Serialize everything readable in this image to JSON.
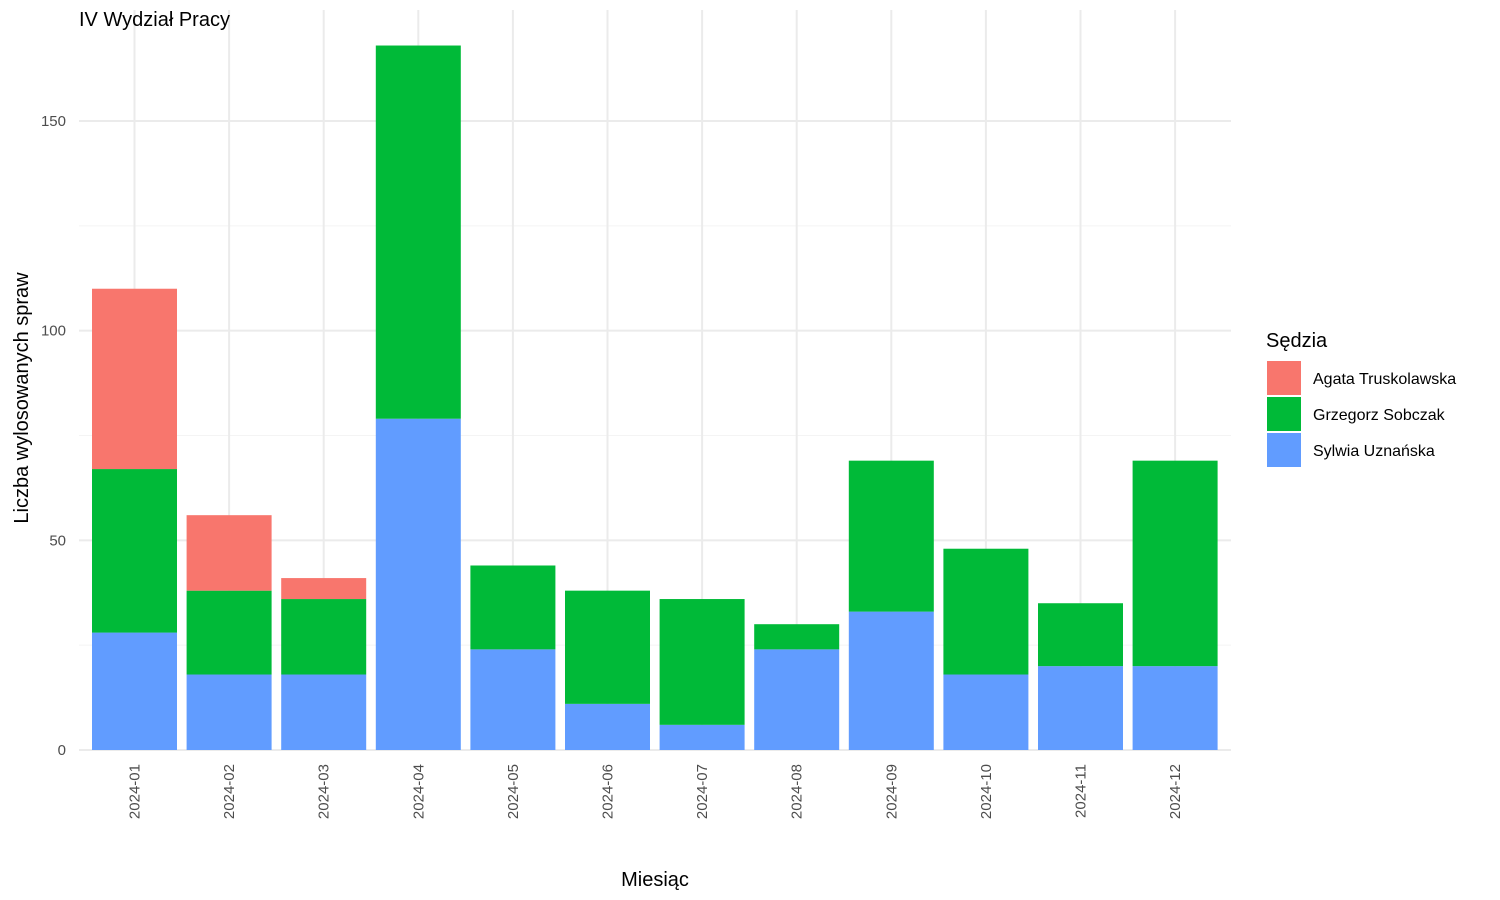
{
  "chart_data": {
    "type": "bar",
    "stacked": true,
    "title": "IV Wydział Pracy",
    "xlabel": "Miesiąc",
    "ylabel": "Liczba wylosowanych spraw",
    "ylim": [
      0,
      175
    ],
    "yticks": [
      0,
      50,
      100,
      150
    ],
    "grid": true,
    "legend_position": "right",
    "categories": [
      "2024-01",
      "2024-02",
      "2024-03",
      "2024-04",
      "2024-05",
      "2024-06",
      "2024-07",
      "2024-08",
      "2024-09",
      "2024-10",
      "2024-11",
      "2024-12"
    ],
    "legend": {
      "title": "Sędzia"
    },
    "series": [
      {
        "name": "Agata Truskolawska",
        "color": "#F8766D",
        "values": [
          43,
          18,
          5,
          0,
          0,
          0,
          0,
          0,
          0,
          0,
          0,
          0
        ]
      },
      {
        "name": "Grzegorz Sobczak",
        "color": "#00BA38",
        "values": [
          39,
          20,
          18,
          89,
          20,
          27,
          30,
          6,
          36,
          30,
          15,
          49
        ]
      },
      {
        "name": "Sylwia Uznańska",
        "color": "#619CFF",
        "values": [
          28,
          18,
          18,
          79,
          24,
          11,
          6,
          24,
          33,
          18,
          20,
          20
        ]
      }
    ]
  }
}
